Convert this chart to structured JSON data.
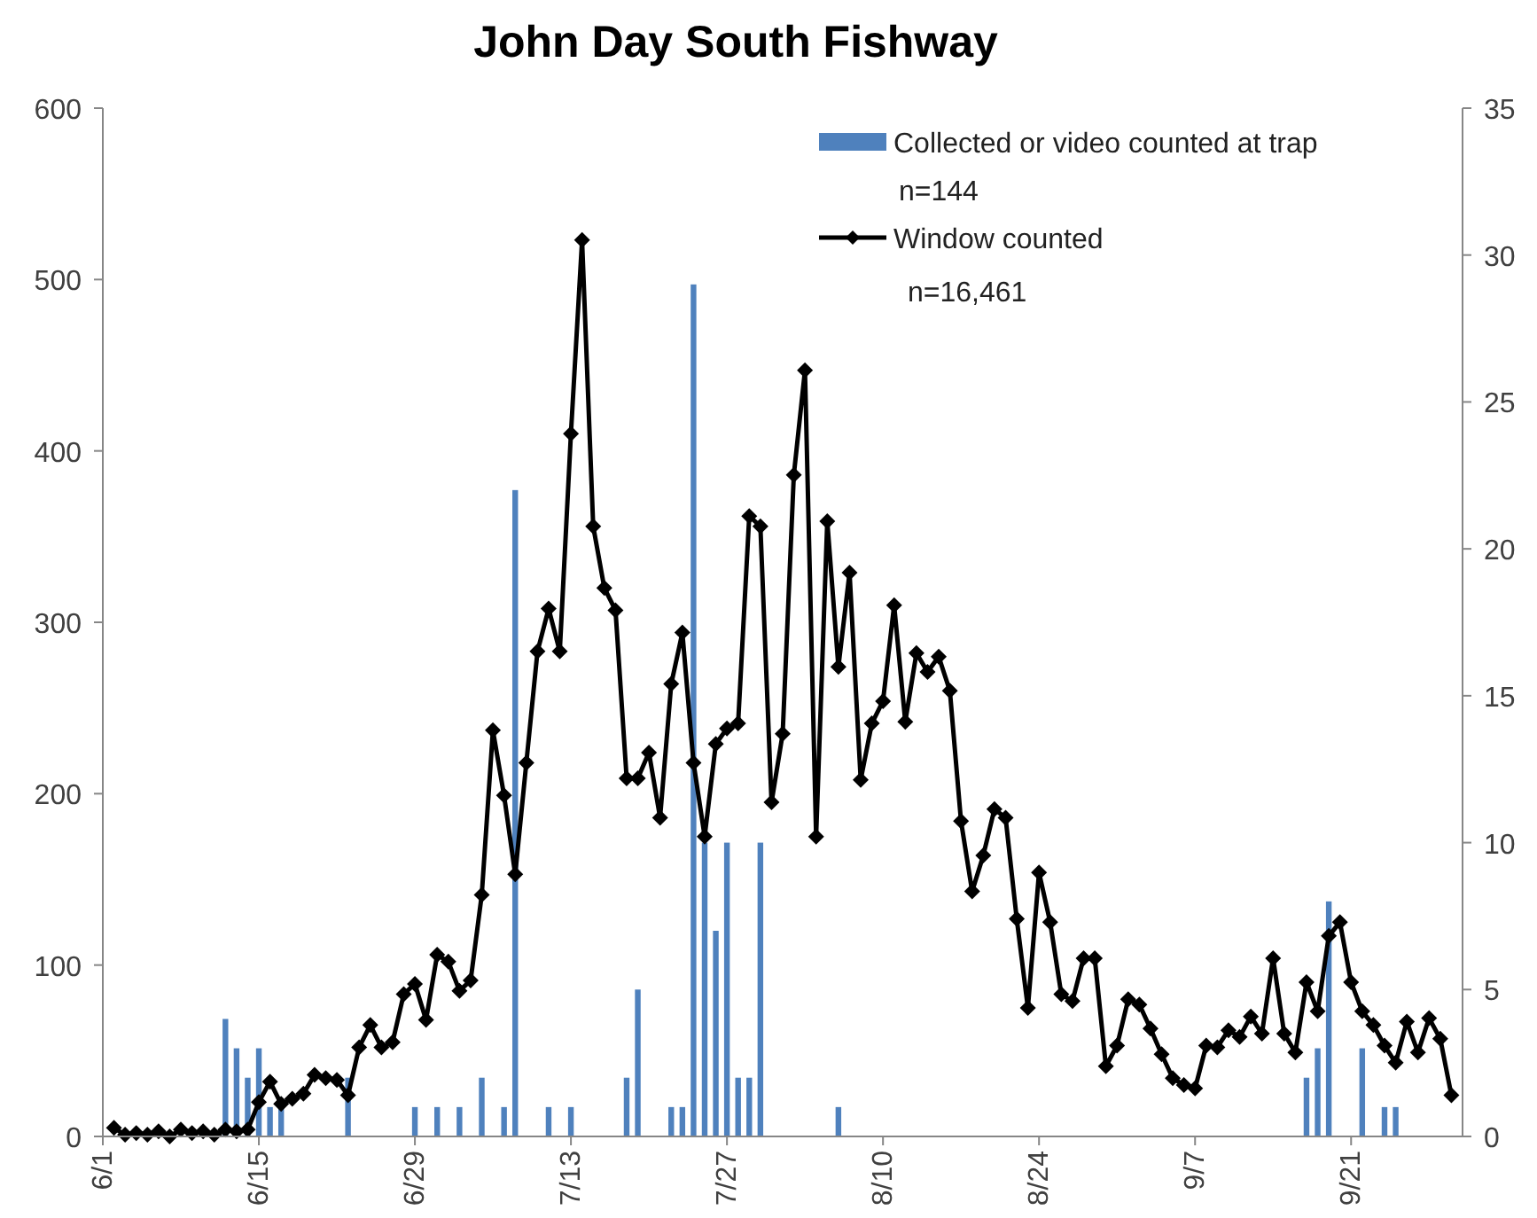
{
  "chart_data": {
    "type": "line",
    "title": "John Day South Fishway",
    "xlim": [
      "--06-01",
      "--10-01"
    ],
    "xticks": [
      {
        "value": "--06-01",
        "label": "6/1"
      },
      {
        "value": "--06-15",
        "label": "6/15"
      },
      {
        "value": "--06-29",
        "label": "6/29"
      },
      {
        "value": "--07-13",
        "label": "7/13"
      },
      {
        "value": "--07-27",
        "label": "7/27"
      },
      {
        "value": "--08-10",
        "label": "8/10"
      },
      {
        "value": "--08-24",
        "label": "8/24"
      },
      {
        "value": "--09-07",
        "label": "9/7"
      },
      {
        "value": "--09-21",
        "label": "9/21"
      }
    ],
    "ylim": [
      0,
      600
    ],
    "yticks": [
      0,
      100,
      200,
      300,
      400,
      500,
      600
    ],
    "y2lim": [
      0,
      35
    ],
    "y2ticks": [
      0,
      5,
      10,
      15,
      20,
      25,
      30,
      35
    ],
    "grid": false,
    "legend": "top right",
    "marker": "diamond",
    "line_style": "solid",
    "annotations": [
      "n=144",
      "n=16,461"
    ],
    "series": [
      {
        "name": "Collected or video counted at trap",
        "type": "bar",
        "axis": "y2",
        "color": "#4f81bd",
        "x": [
          "--06-12",
          "--06-13",
          "--06-14",
          "--06-15",
          "--06-16",
          "--06-17",
          "--06-23",
          "--06-29",
          "--07-01",
          "--07-03",
          "--07-05",
          "--07-07",
          "--07-08",
          "--07-11",
          "--07-13",
          "--07-18",
          "--07-19",
          "--07-22",
          "--07-23",
          "--07-24",
          "--07-25",
          "--07-26",
          "--07-27",
          "--07-28",
          "--07-29",
          "--07-30",
          "--08-06",
          "--09-17",
          "--09-18",
          "--09-19",
          "--09-22",
          "--09-24",
          "--09-25"
        ],
        "values": [
          4,
          3,
          2,
          3,
          1,
          1,
          2,
          1,
          1,
          1,
          2,
          1,
          22,
          1,
          1,
          2,
          5,
          1,
          1,
          29,
          10,
          7,
          10,
          2,
          2,
          10,
          1,
          2,
          3,
          8,
          3,
          1,
          1
        ]
      },
      {
        "name": "Window counted",
        "axis": "y",
        "color": "#000000",
        "x": [
          "--06-02",
          "--06-03",
          "--06-04",
          "--06-05",
          "--06-06",
          "--06-07",
          "--06-08",
          "--06-09",
          "--06-10",
          "--06-11",
          "--06-12",
          "--06-13",
          "--06-14",
          "--06-15",
          "--06-16",
          "--06-17",
          "--06-18",
          "--06-19",
          "--06-20",
          "--06-21",
          "--06-22",
          "--06-23",
          "--06-24",
          "--06-25",
          "--06-26",
          "--06-27",
          "--06-28",
          "--06-29",
          "--06-30",
          "--07-01",
          "--07-02",
          "--07-03",
          "--07-04",
          "--07-05",
          "--07-06",
          "--07-07",
          "--07-08",
          "--07-09",
          "--07-10",
          "--07-11",
          "--07-12",
          "--07-13",
          "--07-14",
          "--07-15",
          "--07-16",
          "--07-17",
          "--07-18",
          "--07-19",
          "--07-20",
          "--07-21",
          "--07-22",
          "--07-23",
          "--07-24",
          "--07-25",
          "--07-26",
          "--07-27",
          "--07-28",
          "--07-29",
          "--07-30",
          "--07-31",
          "--08-01",
          "--08-02",
          "--08-03",
          "--08-04",
          "--08-05",
          "--08-06",
          "--08-07",
          "--08-08",
          "--08-09",
          "--08-10",
          "--08-11",
          "--08-12",
          "--08-13",
          "--08-14",
          "--08-15",
          "--08-16",
          "--08-17",
          "--08-18",
          "--08-19",
          "--08-20",
          "--08-21",
          "--08-22",
          "--08-23",
          "--08-24",
          "--08-25",
          "--08-26",
          "--08-27",
          "--08-28",
          "--08-29",
          "--08-30",
          "--08-31",
          "--09-01",
          "--09-02",
          "--09-03",
          "--09-04",
          "--09-05",
          "--09-06",
          "--09-07",
          "--09-08",
          "--09-09",
          "--09-10",
          "--09-11",
          "--09-12",
          "--09-13",
          "--09-14",
          "--09-15",
          "--09-16",
          "--09-17",
          "--09-18",
          "--09-19",
          "--09-20",
          "--09-21",
          "--09-22",
          "--09-23",
          "--09-24",
          "--09-25",
          "--09-26",
          "--09-27",
          "--09-28",
          "--09-29",
          "--09-30"
        ],
        "values": [
          5,
          1,
          2,
          1,
          3,
          0,
          4,
          2,
          3,
          1,
          4,
          3,
          4,
          20,
          32,
          19,
          22,
          25,
          36,
          34,
          33,
          24,
          52,
          65,
          52,
          55,
          83,
          89,
          68,
          106,
          102,
          85,
          91,
          141,
          237,
          199,
          153,
          218,
          283,
          308,
          283,
          410,
          523,
          356,
          320,
          307,
          209,
          209,
          224,
          186,
          264,
          294,
          218,
          175,
          229,
          238,
          241,
          362,
          356,
          195,
          235,
          386,
          447,
          175,
          359,
          274,
          329,
          208,
          241,
          254,
          310,
          242,
          282,
          271,
          280,
          260,
          184,
          143,
          164,
          191,
          186,
          127,
          75,
          154,
          125,
          83,
          79,
          104,
          104,
          41,
          53,
          80,
          77,
          63,
          48,
          34,
          30,
          28,
          53,
          52,
          62,
          58,
          70,
          60,
          104,
          60,
          49,
          90,
          73,
          117,
          125,
          90,
          73,
          65,
          53,
          43,
          67,
          49,
          69,
          57,
          24
        ]
      }
    ]
  }
}
